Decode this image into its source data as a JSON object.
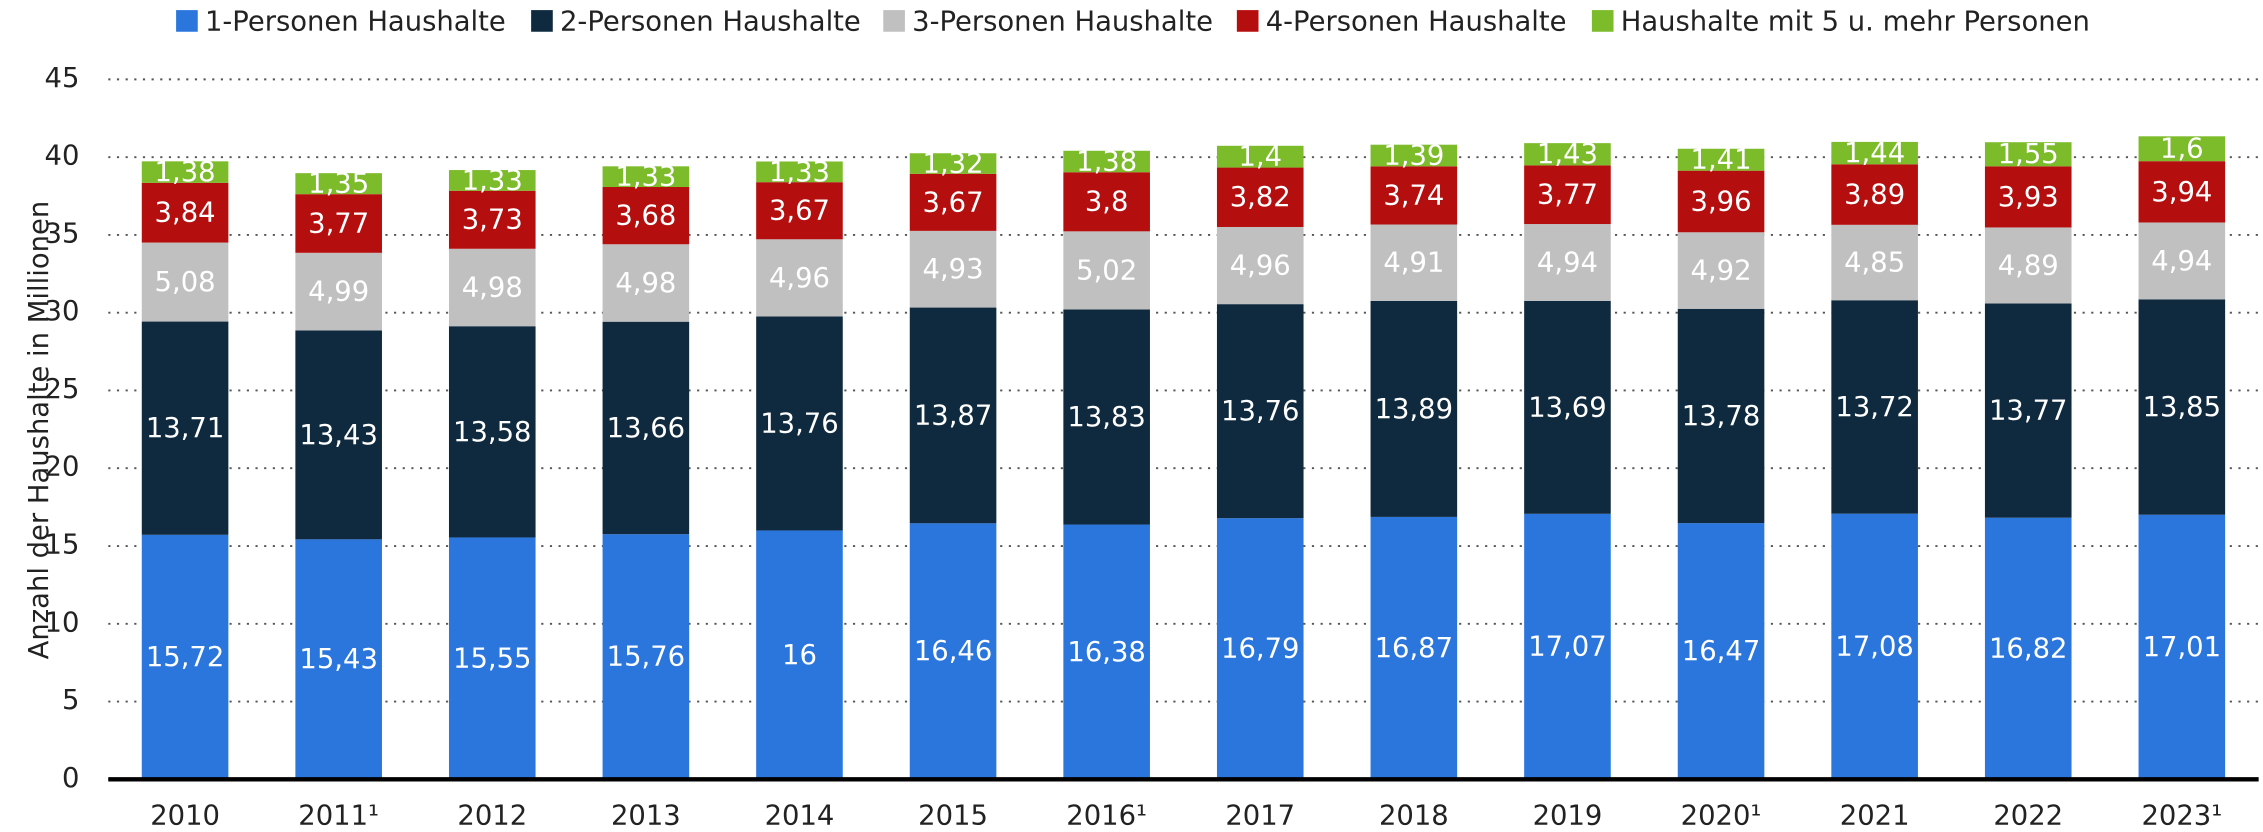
{
  "chart_data": {
    "type": "stacked-bar",
    "y_label": "Anzahl der Haushalte in Millionen",
    "categories": [
      "2010",
      "2011¹",
      "2012",
      "2013",
      "2014",
      "2015",
      "2016¹",
      "2017",
      "2018",
      "2019",
      "2020¹",
      "2021",
      "2022",
      "2023¹"
    ],
    "series": [
      {
        "name": "1-Personen Haushalte",
        "color": "#2a76dd",
        "values": [
          15.72,
          15.43,
          15.55,
          15.76,
          16,
          16.46,
          16.38,
          16.79,
          16.87,
          17.07,
          16.47,
          17.08,
          16.82,
          17.01
        ],
        "value_labels": [
          "15,72",
          "15,43",
          "15,55",
          "15,76",
          "16",
          "16,46",
          "16,38",
          "16,79",
          "16,87",
          "17,07",
          "16,47",
          "17,08",
          "16,82",
          "17,01"
        ]
      },
      {
        "name": "2-Personen Haushalte",
        "color": "#0f2a3f",
        "values": [
          13.71,
          13.43,
          13.58,
          13.66,
          13.76,
          13.87,
          13.83,
          13.76,
          13.89,
          13.69,
          13.78,
          13.72,
          13.77,
          13.85
        ],
        "value_labels": [
          "13,71",
          "13,43",
          "13,58",
          "13,66",
          "13,76",
          "13,87",
          "13,83",
          "13,76",
          "13,89",
          "13,69",
          "13,78",
          "13,72",
          "13,77",
          "13,85"
        ]
      },
      {
        "name": "3-Personen Haushalte",
        "color": "#c0c0c0",
        "values": [
          5.08,
          4.99,
          4.98,
          4.98,
          4.96,
          4.93,
          5.02,
          4.96,
          4.91,
          4.94,
          4.92,
          4.85,
          4.89,
          4.94
        ],
        "value_labels": [
          "5,08",
          "4,99",
          "4,98",
          "4,98",
          "4,96",
          "4,93",
          "5,02",
          "4,96",
          "4,91",
          "4,94",
          "4,92",
          "4,85",
          "4,89",
          "4,94"
        ]
      },
      {
        "name": "4-Personen Haushalte",
        "color": "#b50e0e",
        "values": [
          3.84,
          3.77,
          3.73,
          3.68,
          3.67,
          3.67,
          3.8,
          3.82,
          3.74,
          3.77,
          3.96,
          3.89,
          3.93,
          3.94
        ],
        "value_labels": [
          "3,84",
          "3,77",
          "3,73",
          "3,68",
          "3,67",
          "3,67",
          "3,8",
          "3,82",
          "3,74",
          "3,77",
          "3,96",
          "3,89",
          "3,93",
          "3,94"
        ]
      },
      {
        "name": "Haushalte mit 5 u. mehr Personen",
        "color": "#7cbb2a",
        "values": [
          1.38,
          1.35,
          1.33,
          1.33,
          1.33,
          1.32,
          1.38,
          1.4,
          1.39,
          1.43,
          1.41,
          1.44,
          1.55,
          1.6
        ],
        "value_labels": [
          "1,38",
          "1,35",
          "1,33",
          "1,33",
          "1,33",
          "1,32",
          "1,38",
          "1,4",
          "1,39",
          "1,43",
          "1,41",
          "1,44",
          "1,55",
          "1,6"
        ]
      }
    ],
    "ylim": [
      0,
      45
    ],
    "yticks": [
      0,
      5,
      10,
      15,
      20,
      25,
      30,
      35,
      40,
      45
    ],
    "grid": true,
    "legend": "top"
  }
}
